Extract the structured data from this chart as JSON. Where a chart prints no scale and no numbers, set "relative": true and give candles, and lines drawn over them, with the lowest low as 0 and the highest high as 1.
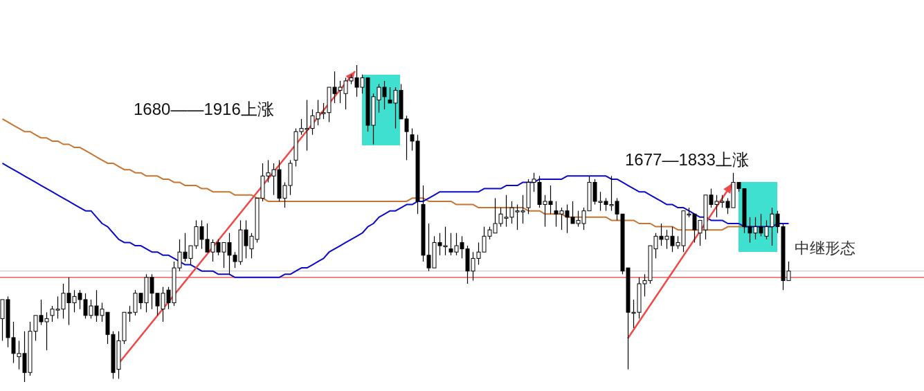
{
  "chart_data": {
    "type": "candlestick",
    "relative": true,
    "categories": [
      null,
      null,
      null,
      null,
      null,
      null,
      null,
      null,
      null,
      null,
      null,
      null,
      null,
      null,
      null,
      null,
      null,
      null,
      null,
      null,
      null,
      null,
      null,
      null,
      null,
      null,
      null,
      null,
      null,
      null,
      null,
      null,
      null,
      null,
      null,
      null,
      null,
      null,
      null,
      null,
      null,
      null,
      null,
      null,
      null,
      null,
      null,
      null,
      null,
      null,
      null,
      null,
      null,
      null,
      null,
      null,
      null,
      null,
      null,
      null,
      null,
      null,
      null,
      null,
      null,
      null,
      null,
      null,
      null,
      null,
      null,
      null,
      null,
      null,
      null,
      null,
      null,
      null,
      null,
      null,
      null,
      null,
      null,
      null,
      null,
      null,
      null,
      null,
      null,
      null,
      null,
      null,
      null,
      null,
      null,
      null,
      null,
      null,
      null,
      null,
      null,
      null,
      null,
      null,
      null,
      null,
      null,
      null,
      null,
      null,
      null,
      null,
      null,
      null,
      null,
      null,
      null,
      null,
      null,
      null,
      null,
      null,
      null,
      null,
      null,
      null,
      null,
      null,
      null,
      null,
      null,
      null,
      null,
      null,
      null,
      null,
      null,
      null,
      null,
      null,
      null,
      null,
      null
    ],
    "ohlc": [
      [
        0.2,
        0.26,
        0.13,
        0.26
      ],
      [
        0.26,
        0.27,
        0.11,
        0.14
      ],
      [
        0.14,
        0.19,
        0.06,
        0.09
      ],
      [
        0.08,
        0.13,
        0.04,
        0.09
      ],
      [
        0.09,
        0.16,
        0.0,
        0.03
      ],
      [
        0.03,
        0.19,
        0.02,
        0.16
      ],
      [
        0.16,
        0.21,
        0.13,
        0.21
      ],
      [
        0.21,
        0.26,
        0.18,
        0.19
      ],
      [
        0.19,
        0.22,
        0.1,
        0.2
      ],
      [
        0.21,
        0.24,
        0.19,
        0.23
      ],
      [
        0.23,
        0.27,
        0.2,
        0.23
      ],
      [
        0.23,
        0.31,
        0.2,
        0.28
      ],
      [
        0.28,
        0.33,
        0.18,
        0.25
      ],
      [
        0.25,
        0.29,
        0.22,
        0.27
      ],
      [
        0.28,
        0.29,
        0.23,
        0.26
      ],
      [
        0.26,
        0.28,
        0.2,
        0.21
      ],
      [
        0.21,
        0.26,
        0.2,
        0.24
      ],
      [
        0.24,
        0.29,
        0.19,
        0.21
      ],
      [
        0.21,
        0.25,
        0.19,
        0.23
      ],
      [
        0.22,
        0.22,
        0.12,
        0.15
      ],
      [
        0.15,
        0.16,
        0.01,
        0.03
      ],
      [
        0.04,
        0.16,
        0.01,
        0.13
      ],
      [
        0.13,
        0.22,
        0.12,
        0.22
      ],
      [
        0.22,
        0.24,
        0.19,
        0.22
      ],
      [
        0.22,
        0.29,
        0.21,
        0.28
      ],
      [
        0.28,
        0.28,
        0.23,
        0.25
      ],
      [
        0.25,
        0.34,
        0.22,
        0.33
      ],
      [
        0.33,
        0.34,
        0.23,
        0.28
      ],
      [
        0.28,
        0.28,
        0.21,
        0.24
      ],
      [
        0.23,
        0.3,
        0.19,
        0.28
      ],
      [
        0.29,
        0.3,
        0.23,
        0.25
      ],
      [
        0.25,
        0.38,
        0.24,
        0.36
      ],
      [
        0.36,
        0.45,
        0.35,
        0.41
      ],
      [
        0.41,
        0.47,
        0.38,
        0.39
      ],
      [
        0.39,
        0.43,
        0.37,
        0.43
      ],
      [
        0.43,
        0.51,
        0.42,
        0.49
      ],
      [
        0.49,
        0.51,
        0.42,
        0.45
      ],
      [
        0.45,
        0.5,
        0.41,
        0.41
      ],
      [
        0.41,
        0.45,
        0.38,
        0.44
      ],
      [
        0.44,
        0.45,
        0.4,
        0.41
      ],
      [
        0.41,
        0.44,
        0.36,
        0.44
      ],
      [
        0.44,
        0.47,
        0.34,
        0.4
      ],
      [
        0.4,
        0.41,
        0.36,
        0.38
      ],
      [
        0.38,
        0.51,
        0.37,
        0.48
      ],
      [
        0.48,
        0.51,
        0.39,
        0.43
      ],
      [
        0.42,
        0.47,
        0.39,
        0.46
      ],
      [
        0.45,
        0.58,
        0.44,
        0.58
      ],
      [
        0.58,
        0.69,
        0.57,
        0.65
      ],
      [
        0.65,
        0.7,
        0.63,
        0.66
      ],
      [
        0.65,
        0.69,
        0.59,
        0.67
      ],
      [
        0.67,
        0.7,
        0.57,
        0.58
      ],
      [
        0.58,
        0.63,
        0.55,
        0.62
      ],
      [
        0.62,
        0.7,
        0.59,
        0.69
      ],
      [
        0.7,
        0.8,
        0.68,
        0.79
      ],
      [
        0.79,
        0.83,
        0.78,
        0.8
      ],
      [
        0.8,
        0.89,
        0.73,
        0.8
      ],
      [
        0.8,
        0.86,
        0.78,
        0.84
      ],
      [
        0.83,
        0.89,
        0.81,
        0.85
      ],
      [
        0.85,
        0.88,
        0.83,
        0.85
      ],
      [
        0.85,
        0.93,
        0.82,
        0.93
      ],
      [
        0.93,
        0.98,
        0.88,
        0.91
      ],
      [
        0.92,
        0.95,
        0.88,
        0.93
      ],
      [
        0.91,
        0.96,
        0.86,
        0.95
      ],
      [
        0.95,
        0.97,
        0.94,
        0.96
      ],
      [
        0.96,
        1.0,
        0.9,
        0.93
      ],
      [
        0.93,
        0.97,
        0.91,
        0.96
      ],
      [
        0.96,
        0.96,
        0.79,
        0.81
      ],
      [
        0.81,
        0.91,
        0.75,
        0.9
      ],
      [
        0.89,
        0.94,
        0.85,
        0.93
      ],
      [
        0.93,
        0.95,
        0.86,
        0.9
      ],
      [
        0.89,
        0.93,
        0.88,
        0.88
      ],
      [
        0.88,
        0.93,
        0.8,
        0.92
      ],
      [
        0.92,
        0.94,
        0.83,
        0.83
      ],
      [
        0.83,
        0.84,
        0.7,
        0.79
      ],
      [
        0.78,
        0.8,
        0.73,
        0.76
      ],
      [
        0.76,
        0.78,
        0.53,
        0.57
      ],
      [
        0.56,
        0.62,
        0.38,
        0.4
      ],
      [
        0.4,
        0.5,
        0.35,
        0.36
      ],
      [
        0.36,
        0.46,
        0.36,
        0.44
      ],
      [
        0.44,
        0.47,
        0.4,
        0.43
      ],
      [
        0.43,
        0.49,
        0.4,
        0.43
      ],
      [
        0.42,
        0.47,
        0.4,
        0.41
      ],
      [
        0.41,
        0.47,
        0.4,
        0.43
      ],
      [
        0.44,
        0.46,
        0.39,
        0.42
      ],
      [
        0.42,
        0.43,
        0.31,
        0.35
      ],
      [
        0.35,
        0.41,
        0.32,
        0.39
      ],
      [
        0.39,
        0.44,
        0.37,
        0.41
      ],
      [
        0.41,
        0.49,
        0.41,
        0.46
      ],
      [
        0.46,
        0.49,
        0.45,
        0.48
      ],
      [
        0.47,
        0.58,
        0.47,
        0.5
      ],
      [
        0.5,
        0.55,
        0.49,
        0.53
      ],
      [
        0.52,
        0.59,
        0.49,
        0.52
      ],
      [
        0.52,
        0.57,
        0.5,
        0.55
      ],
      [
        0.54,
        0.56,
        0.48,
        0.54
      ],
      [
        0.54,
        0.59,
        0.5,
        0.54
      ],
      [
        0.55,
        0.64,
        0.53,
        0.63
      ],
      [
        0.63,
        0.66,
        0.6,
        0.64
      ],
      [
        0.63,
        0.65,
        0.55,
        0.56
      ],
      [
        0.56,
        0.59,
        0.49,
        0.57
      ],
      [
        0.57,
        0.62,
        0.53,
        0.56
      ],
      [
        0.54,
        0.57,
        0.49,
        0.53
      ],
      [
        0.53,
        0.55,
        0.48,
        0.54
      ],
      [
        0.54,
        0.56,
        0.47,
        0.52
      ],
      [
        0.52,
        0.57,
        0.5,
        0.5
      ],
      [
        0.5,
        0.54,
        0.49,
        0.51
      ],
      [
        0.5,
        0.55,
        0.48,
        0.54
      ],
      [
        0.54,
        0.65,
        0.54,
        0.63
      ],
      [
        0.63,
        0.64,
        0.56,
        0.57
      ],
      [
        0.57,
        0.6,
        0.54,
        0.57
      ],
      [
        0.57,
        0.58,
        0.54,
        0.56
      ],
      [
        0.56,
        0.65,
        0.54,
        0.56
      ],
      [
        0.57,
        0.58,
        0.51,
        0.53
      ],
      [
        0.53,
        0.53,
        0.34,
        0.35
      ],
      [
        0.36,
        0.36,
        0.04,
        0.22
      ],
      [
        0.22,
        0.26,
        0.17,
        0.22
      ],
      [
        0.22,
        0.33,
        0.2,
        0.31
      ],
      [
        0.31,
        0.34,
        0.27,
        0.32
      ],
      [
        0.32,
        0.43,
        0.31,
        0.43
      ],
      [
        0.42,
        0.47,
        0.39,
        0.46
      ],
      [
        0.46,
        0.5,
        0.43,
        0.45
      ],
      [
        0.45,
        0.48,
        0.42,
        0.46
      ],
      [
        0.46,
        0.49,
        0.41,
        0.43
      ],
      [
        0.43,
        0.46,
        0.42,
        0.44
      ],
      [
        0.43,
        0.54,
        0.41,
        0.54
      ],
      [
        0.53,
        0.55,
        0.52,
        0.53
      ],
      [
        0.53,
        0.53,
        0.44,
        0.48
      ],
      [
        0.47,
        0.51,
        0.43,
        0.51
      ],
      [
        0.48,
        0.59,
        0.45,
        0.59
      ],
      [
        0.59,
        0.61,
        0.55,
        0.56
      ],
      [
        0.56,
        0.59,
        0.52,
        0.57
      ],
      [
        0.57,
        0.59,
        0.55,
        0.57
      ],
      [
        0.57,
        0.58,
        0.53,
        0.55
      ],
      [
        0.55,
        0.66,
        0.55,
        0.63
      ],
      [
        0.63,
        0.63,
        0.6,
        0.61
      ],
      [
        0.61,
        0.61,
        0.47,
        0.49
      ],
      [
        0.49,
        0.52,
        0.44,
        0.47
      ],
      [
        0.47,
        0.52,
        0.45,
        0.49
      ],
      [
        0.49,
        0.53,
        0.46,
        0.47
      ],
      [
        0.46,
        0.51,
        0.45,
        0.49
      ],
      [
        0.49,
        0.55,
        0.43,
        0.53
      ],
      [
        0.53,
        0.54,
        0.47,
        0.49
      ],
      [
        0.49,
        0.5,
        0.29,
        0.32
      ],
      [
        0.32,
        0.38,
        0.32,
        0.35
      ]
    ],
    "series": [
      {
        "type": "line",
        "color": "#0a0ac8",
        "values": [
          0.69,
          0.68,
          0.67,
          0.66,
          0.65,
          0.64,
          0.63,
          0.62,
          0.61,
          0.6,
          0.59,
          0.58,
          0.57,
          0.56,
          0.55,
          0.54,
          0.54,
          0.52,
          0.5,
          0.49,
          0.47,
          0.45,
          0.44,
          0.44,
          0.43,
          0.43,
          0.42,
          0.41,
          0.41,
          0.4,
          0.4,
          0.39,
          0.38,
          0.37,
          0.37,
          0.36,
          0.35,
          0.35,
          0.35,
          0.34,
          0.34,
          0.34,
          0.33,
          0.33,
          0.33,
          0.33,
          0.33,
          0.33,
          0.33,
          0.33,
          0.33,
          0.34,
          0.34,
          0.35,
          0.36,
          0.36,
          0.37,
          0.38,
          0.39,
          0.41,
          0.42,
          0.43,
          0.44,
          0.45,
          0.46,
          0.47,
          0.49,
          0.5,
          0.52,
          0.53,
          0.54,
          0.54,
          0.55,
          0.56,
          0.56,
          0.57,
          0.57,
          0.58,
          0.59,
          0.6,
          0.6,
          0.6,
          0.6,
          0.6,
          0.6,
          0.6,
          0.6,
          0.61,
          0.61,
          0.61,
          0.61,
          0.62,
          0.62,
          0.62,
          0.63,
          0.63,
          0.63,
          0.64,
          0.64,
          0.64,
          0.64,
          0.64,
          0.65,
          0.65,
          0.65,
          0.65,
          0.65,
          0.65,
          0.65,
          0.65,
          0.64,
          0.64,
          0.63,
          0.62,
          0.61,
          0.6,
          0.6,
          0.59,
          0.58,
          0.57,
          0.56,
          0.56,
          0.55,
          0.55,
          0.54,
          0.53,
          0.52,
          0.52,
          0.51,
          0.51,
          0.51,
          0.5,
          0.5,
          0.5,
          0.49,
          0.49,
          0.49,
          0.49,
          0.49,
          0.49,
          0.5,
          0.5,
          0.5
        ]
      },
      {
        "type": "line",
        "color": "#c8742e",
        "values": [
          0.83,
          0.82,
          0.81,
          0.8,
          0.79,
          0.79,
          0.78,
          0.77,
          0.77,
          0.76,
          0.76,
          0.75,
          0.75,
          0.74,
          0.74,
          0.73,
          0.72,
          0.71,
          0.7,
          0.69,
          0.69,
          0.68,
          0.67,
          0.67,
          0.66,
          0.66,
          0.65,
          0.65,
          0.65,
          0.64,
          0.64,
          0.63,
          0.63,
          0.62,
          0.62,
          0.62,
          0.61,
          0.61,
          0.6,
          0.6,
          0.6,
          0.6,
          0.59,
          0.59,
          0.59,
          0.59,
          0.58,
          0.58,
          0.57,
          0.57,
          0.57,
          0.57,
          0.57,
          0.57,
          0.57,
          0.57,
          0.57,
          0.57,
          0.57,
          0.57,
          0.57,
          0.57,
          0.57,
          0.57,
          0.57,
          0.57,
          0.57,
          0.57,
          0.57,
          0.57,
          0.57,
          0.57,
          0.57,
          0.57,
          0.58,
          0.58,
          0.58,
          0.57,
          0.57,
          0.57,
          0.57,
          0.57,
          0.56,
          0.56,
          0.56,
          0.56,
          0.55,
          0.55,
          0.55,
          0.55,
          0.55,
          0.55,
          0.55,
          0.55,
          0.55,
          0.54,
          0.54,
          0.54,
          0.53,
          0.53,
          0.53,
          0.53,
          0.52,
          0.52,
          0.52,
          0.52,
          0.52,
          0.52,
          0.52,
          0.52,
          0.51,
          0.51,
          0.51,
          0.51,
          0.51,
          0.5,
          0.5,
          0.5,
          0.49,
          0.49,
          0.49,
          0.49,
          0.48,
          0.48,
          0.48,
          0.48,
          0.48,
          0.48,
          0.48,
          0.48,
          0.48,
          0.49,
          0.49,
          0.49,
          0.49,
          null,
          null,
          null,
          null,
          null,
          null,
          null,
          null
        ]
      }
    ],
    "ref_lines": [
      {
        "axis": "y",
        "value": 0.35,
        "color": "#c0c0c0"
      },
      {
        "axis": "y",
        "value": 0.33,
        "color": "#e01010"
      }
    ],
    "annotations": [
      "1680——1916上涨",
      "1677—1833上涨",
      "中继形态"
    ]
  }
}
